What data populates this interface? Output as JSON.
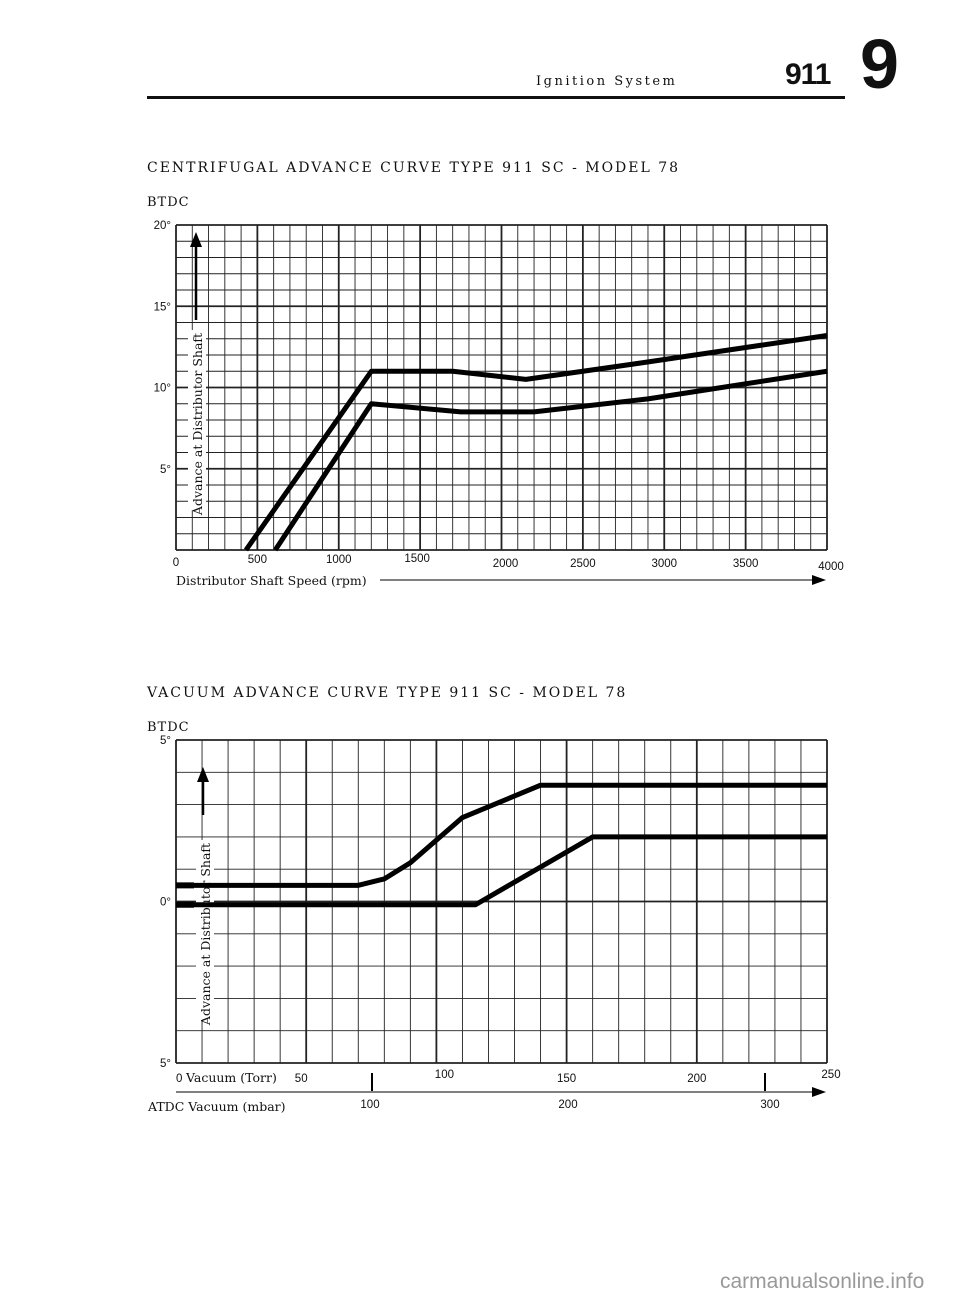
{
  "header": {
    "section": "Ignition System",
    "model": "911",
    "chapter": "9"
  },
  "chart_data": [
    {
      "type": "line",
      "title": "CENTRIFUGAL ADVANCE CURVE TYPE 911 SC - MODEL 78",
      "unit_label": "BTDC",
      "ylabel": "Advance at Distributor Shaft",
      "xlabel": "Distributor Shaft Speed (rpm)",
      "x_ticks": [
        "0",
        "500",
        "1000",
        "1500",
        "2000",
        "2500",
        "3000",
        "3500",
        "4000"
      ],
      "y_ticks": [
        "20°",
        "15°",
        "10°",
        "5°"
      ],
      "xlim": [
        0,
        4000
      ],
      "ylim": [
        0,
        20
      ],
      "grid": true,
      "series": [
        {
          "x": [
            610,
            1200,
            1750,
            2200,
            2900,
            4000
          ],
          "y": [
            0,
            9,
            8.5,
            8.5,
            9.3,
            11
          ]
        },
        {
          "x": [
            430,
            1200,
            1700,
            2150,
            2850,
            4000
          ],
          "y": [
            0,
            11,
            11,
            10.5,
            11.5,
            13.2
          ]
        }
      ]
    },
    {
      "type": "line",
      "title": "VACUUM ADVANCE CURVE TYPE 911 SC - MODEL 78",
      "unit_label": "BTDC",
      "unit_label_bottom": "ATDC",
      "ylabel": "Advance at Distributor Shaft",
      "xlabel": "Vacuum (Torr)",
      "xlabel_secondary": "Vacuum (mbar)",
      "x_ticks": [
        "0",
        "50",
        "100",
        "150",
        "200",
        "250"
      ],
      "x_ticks_secondary": [
        "100",
        "200",
        "300"
      ],
      "y_ticks": [
        "5°",
        "0°",
        "5°"
      ],
      "xlim": [
        0,
        250
      ],
      "ylim": [
        -5,
        5
      ],
      "grid": true,
      "series": [
        {
          "x": [
            0,
            115,
            160,
            250
          ],
          "y": [
            -0.1,
            -0.1,
            2,
            2
          ]
        },
        {
          "x": [
            0,
            70,
            80,
            90,
            110,
            140,
            145,
            250
          ],
          "y": [
            0.5,
            0.5,
            0.7,
            1.2,
            2.6,
            3.6,
            3.6,
            3.6
          ]
        }
      ]
    }
  ],
  "watermark": "carmanualsonline.info"
}
